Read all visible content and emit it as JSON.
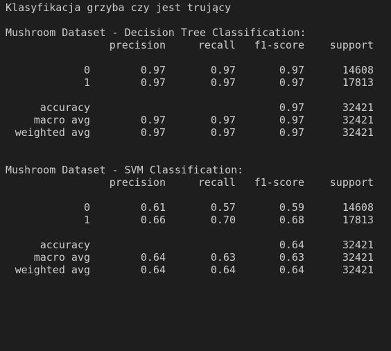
{
  "title": "Klasyfikacja grzyba czy jest trujący",
  "reports": [
    {
      "heading": "Mushroom Dataset - Decision Tree Classification:",
      "columns": [
        "precision",
        "recall",
        "f1-score",
        "support"
      ],
      "classes": [
        {
          "label": "0",
          "precision": "0.97",
          "recall": "0.97",
          "f1": "0.97",
          "support": "14608"
        },
        {
          "label": "1",
          "precision": "0.97",
          "recall": "0.97",
          "f1": "0.97",
          "support": "17813"
        }
      ],
      "accuracy": {
        "label": "accuracy",
        "f1": "0.97",
        "support": "32421"
      },
      "macro": {
        "label": "macro avg",
        "precision": "0.97",
        "recall": "0.97",
        "f1": "0.97",
        "support": "32421"
      },
      "weighted": {
        "label": "weighted avg",
        "precision": "0.97",
        "recall": "0.97",
        "f1": "0.97",
        "support": "32421"
      }
    },
    {
      "heading": "Mushroom Dataset - SVM Classification:",
      "columns": [
        "precision",
        "recall",
        "f1-score",
        "support"
      ],
      "classes": [
        {
          "label": "0",
          "precision": "0.61",
          "recall": "0.57",
          "f1": "0.59",
          "support": "14608"
        },
        {
          "label": "1",
          "precision": "0.66",
          "recall": "0.70",
          "f1": "0.68",
          "support": "17813"
        }
      ],
      "accuracy": {
        "label": "accuracy",
        "f1": "0.64",
        "support": "32421"
      },
      "macro": {
        "label": "macro avg",
        "precision": "0.64",
        "recall": "0.63",
        "f1": "0.63",
        "support": "32421"
      },
      "weighted": {
        "label": "weighted avg",
        "precision": "0.64",
        "recall": "0.64",
        "f1": "0.64",
        "support": "32421"
      }
    }
  ],
  "colors": {
    "background": "#1e1e1e",
    "text": "#cccccc"
  }
}
